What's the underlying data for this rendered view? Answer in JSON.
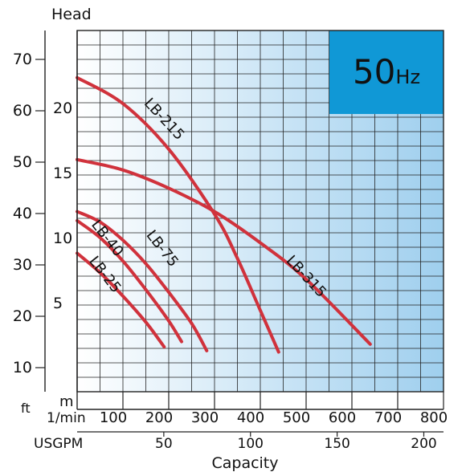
{
  "chart_data": {
    "type": "line",
    "title": "",
    "ylabel": "Head",
    "xlabel": "Capacity",
    "badge": "50",
    "badge_unit": "Hz",
    "badge_color": "#1098d6",
    "curve_color": "#d0323c",
    "x_unit_main": "1/min",
    "x_unit_secondary": "USGPM",
    "y_unit_ft": "ft",
    "y_unit_m": "m",
    "xlim": [
      0,
      800
    ],
    "ylim_m": [
      0,
      24
    ],
    "x_ticks_lpm": [
      "100",
      "200",
      "300",
      "400",
      "500",
      "600",
      "700",
      "800"
    ],
    "x_ticks_usgpm": [
      "50",
      "100",
      "150",
      "200"
    ],
    "y_ticks_m": [
      "5",
      "10",
      "15",
      "20"
    ],
    "y_ticks_ft": [
      "10",
      "20",
      "30",
      "40",
      "50",
      "60",
      "70"
    ],
    "series": [
      {
        "name": "LB-215",
        "label": "LB-215",
        "x": [
          0,
          100,
          200,
          300,
          350,
          400,
          440
        ],
        "y": [
          22.3,
          20.3,
          16.8,
          11.8,
          8.4,
          4.4,
          1.2
        ]
      },
      {
        "name": "LB-315",
        "label": "LB-315",
        "x": [
          0,
          100,
          200,
          300,
          400,
          500,
          640
        ],
        "y": [
          16.0,
          15.2,
          13.8,
          12.0,
          9.6,
          6.8,
          1.8
        ]
      },
      {
        "name": "LB-75",
        "label": "LB-75",
        "x": [
          0,
          50,
          100,
          150,
          200,
          250,
          283
        ],
        "y": [
          12.0,
          11.2,
          9.8,
          8.0,
          5.8,
          3.4,
          1.3
        ]
      },
      {
        "name": "LB-40",
        "label": "LB-40",
        "x": [
          0,
          50,
          100,
          150,
          200,
          228
        ],
        "y": [
          11.3,
          10.0,
          8.2,
          6.0,
          3.6,
          2.0
        ]
      },
      {
        "name": "LB-25",
        "label": "LB-25",
        "x": [
          0,
          50,
          100,
          150,
          190
        ],
        "y": [
          8.8,
          7.3,
          5.5,
          3.5,
          1.6
        ]
      }
    ]
  }
}
